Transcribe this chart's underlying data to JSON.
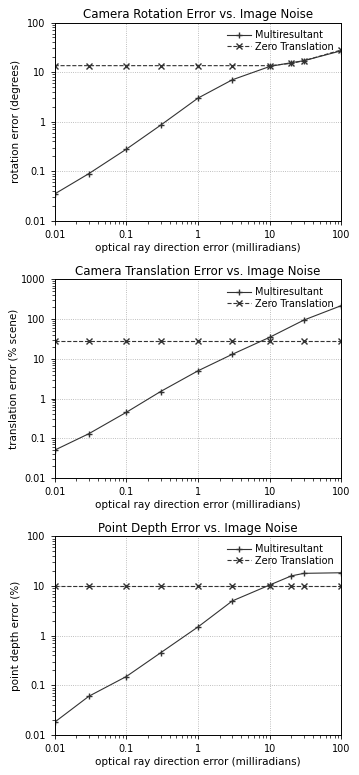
{
  "plots": [
    {
      "title": "Camera Rotation Error vs. Image Noise",
      "ylabel": "rotation error (degrees)",
      "ylim": [
        0.01,
        100
      ],
      "yticks": [
        0.01,
        0.1,
        1,
        10,
        100
      ],
      "multiresultant_x": [
        0.01,
        0.03,
        0.1,
        0.3,
        1,
        3,
        10,
        20,
        30,
        100
      ],
      "multiresultant_y": [
        0.035,
        0.09,
        0.28,
        0.85,
        3.0,
        7.0,
        13.0,
        15.5,
        17.0,
        27.0
      ],
      "zero_translation_x": [
        0.01,
        0.03,
        0.1,
        0.3,
        1,
        3,
        10,
        20,
        30,
        100
      ],
      "zero_translation_y": [
        13.5,
        13.5,
        13.5,
        13.5,
        13.5,
        13.5,
        13.5,
        15.0,
        17.0,
        28.0
      ]
    },
    {
      "title": "Camera Translation Error vs. Image Noise",
      "ylabel": "translation error (% scene)",
      "ylim": [
        0.01,
        1000
      ],
      "yticks": [
        0.01,
        0.1,
        1,
        10,
        100,
        1000
      ],
      "multiresultant_x": [
        0.01,
        0.03,
        0.1,
        0.3,
        1,
        3,
        10,
        30,
        100
      ],
      "multiresultant_y": [
        0.05,
        0.13,
        0.45,
        1.5,
        5.0,
        13.0,
        35.0,
        95.0,
        220.0
      ],
      "zero_translation_x": [
        0.01,
        0.03,
        0.1,
        0.3,
        1,
        3,
        10,
        30,
        100
      ],
      "zero_translation_y": [
        28.0,
        28.0,
        28.0,
        28.0,
        28.0,
        28.0,
        28.0,
        28.0,
        28.0
      ]
    },
    {
      "title": "Point Depth Error vs. Image Noise",
      "ylabel": "point depth error (%)",
      "ylim": [
        0.01,
        100
      ],
      "yticks": [
        0.01,
        0.1,
        1,
        10,
        100
      ],
      "multiresultant_x": [
        0.01,
        0.03,
        0.1,
        0.3,
        1,
        3,
        10,
        20,
        30,
        100
      ],
      "multiresultant_y": [
        0.018,
        0.06,
        0.15,
        0.45,
        1.5,
        5.0,
        10.5,
        16.0,
        18.0,
        18.5
      ],
      "zero_translation_x": [
        0.01,
        0.03,
        0.1,
        0.3,
        1,
        3,
        10,
        20,
        30,
        100
      ],
      "zero_translation_y": [
        10.0,
        10.0,
        10.0,
        10.0,
        10.0,
        10.0,
        10.0,
        10.0,
        10.0,
        10.0
      ]
    }
  ],
  "xlabel": "optical ray direction error (milliradians)",
  "xlim": [
    0.01,
    100
  ],
  "line_color": "#333333",
  "bg_color": "#ffffff",
  "grid_color": "#aaaaaa",
  "legend_labels": [
    "Multiresultant",
    "Zero Translation"
  ],
  "title_fontsize": 8.5,
  "label_fontsize": 7.5,
  "tick_fontsize": 7,
  "legend_fontsize": 7
}
